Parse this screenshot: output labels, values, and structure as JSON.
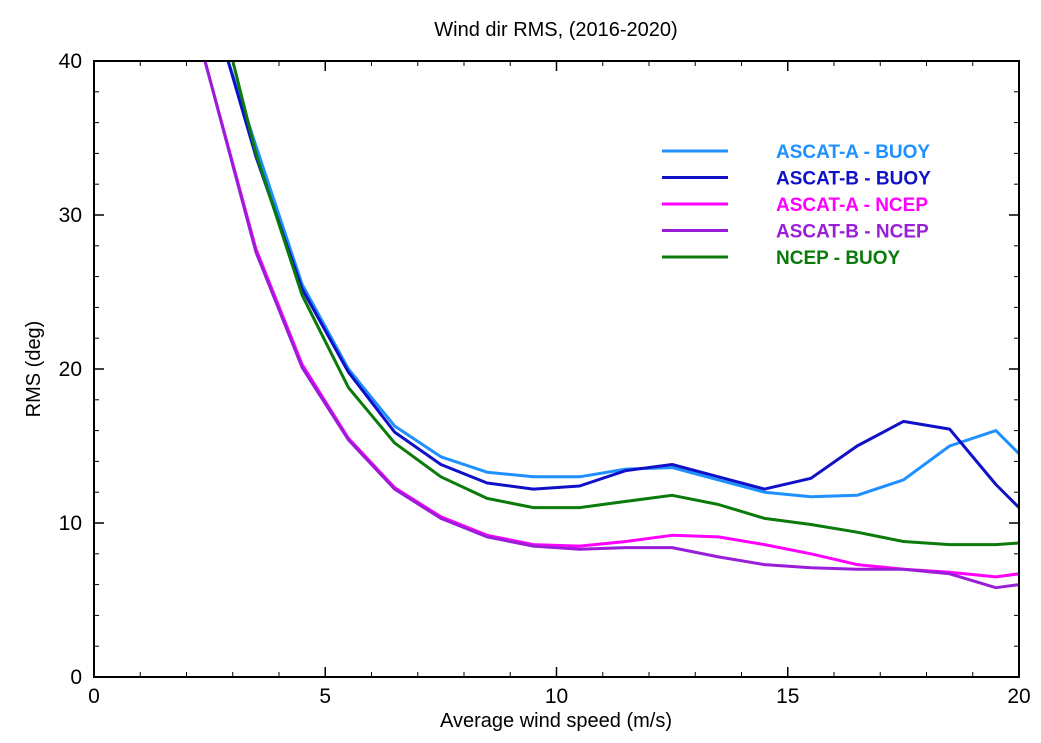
{
  "chart_data": {
    "type": "line",
    "title": "Wind dir RMS, (2016-2020)",
    "xlabel": "Average wind speed (m/s)",
    "ylabel": "RMS (deg)",
    "xlim": [
      0,
      20
    ],
    "ylim": [
      0,
      40
    ],
    "xticks": [
      0,
      5,
      10,
      15,
      20
    ],
    "yticks": [
      0,
      10,
      20,
      30,
      40
    ],
    "legend_position": "top-right",
    "series": [
      {
        "name": "ASCAT-A - BUOY",
        "color": "#1e90ff",
        "x": [
          2.9,
          3.5,
          4.5,
          5.5,
          6.5,
          7.5,
          8.5,
          9.5,
          10.5,
          11.5,
          12.5,
          13.5,
          14.5,
          15.5,
          16.5,
          17.5,
          18.5,
          19.5,
          20
        ],
        "y": [
          40,
          34.5,
          25.5,
          20.0,
          16.3,
          14.3,
          13.3,
          13.0,
          13.0,
          13.5,
          13.6,
          12.8,
          12.0,
          11.7,
          11.8,
          12.8,
          15.0,
          16.0,
          14.5
        ]
      },
      {
        "name": "ASCAT-B - BUOY",
        "color": "#1010c8",
        "x": [
          2.9,
          3.5,
          4.5,
          5.5,
          6.5,
          7.5,
          8.5,
          9.5,
          10.5,
          11.5,
          12.5,
          13.5,
          14.5,
          15.5,
          16.5,
          17.5,
          18.5,
          19.5,
          20
        ],
        "y": [
          40,
          33.8,
          25.2,
          19.8,
          15.9,
          13.8,
          12.6,
          12.2,
          12.4,
          13.4,
          13.8,
          13.0,
          12.2,
          12.9,
          15.0,
          16.6,
          16.1,
          12.5,
          11.0
        ]
      },
      {
        "name": "ASCAT-A - NCEP",
        "color": "#ff00ff",
        "x": [
          2.4,
          3.5,
          4.5,
          5.5,
          6.5,
          7.5,
          8.5,
          9.5,
          10.5,
          11.5,
          12.5,
          13.5,
          14.5,
          15.5,
          16.5,
          17.5,
          18.5,
          19.5,
          20
        ],
        "y": [
          40,
          27.8,
          20.3,
          15.5,
          12.3,
          10.4,
          9.2,
          8.6,
          8.5,
          8.8,
          9.2,
          9.1,
          8.6,
          8.0,
          7.3,
          7.0,
          6.8,
          6.5,
          6.7
        ]
      },
      {
        "name": "ASCAT-B - NCEP",
        "color": "#9a1ed8",
        "x": [
          2.4,
          3.5,
          4.5,
          5.5,
          6.5,
          7.5,
          8.5,
          9.5,
          10.5,
          11.5,
          12.5,
          13.5,
          14.5,
          15.5,
          16.5,
          17.5,
          18.5,
          19.5,
          20
        ],
        "y": [
          40,
          27.6,
          20.1,
          15.4,
          12.2,
          10.3,
          9.1,
          8.5,
          8.3,
          8.4,
          8.4,
          7.8,
          7.3,
          7.1,
          7.0,
          7.0,
          6.7,
          5.8,
          6.0
        ]
      },
      {
        "name": "NCEP - BUOY",
        "color": "#0a7a0a",
        "x": [
          3.0,
          3.5,
          4.5,
          5.5,
          6.5,
          7.5,
          8.5,
          9.5,
          10.5,
          11.5,
          12.5,
          13.5,
          14.5,
          15.5,
          16.5,
          17.5,
          18.5,
          19.5,
          20
        ],
        "y": [
          40,
          34.0,
          24.8,
          18.8,
          15.2,
          13.0,
          11.6,
          11.0,
          11.0,
          11.4,
          11.8,
          11.2,
          10.3,
          9.9,
          9.4,
          8.8,
          8.6,
          8.6,
          8.7
        ]
      }
    ]
  }
}
